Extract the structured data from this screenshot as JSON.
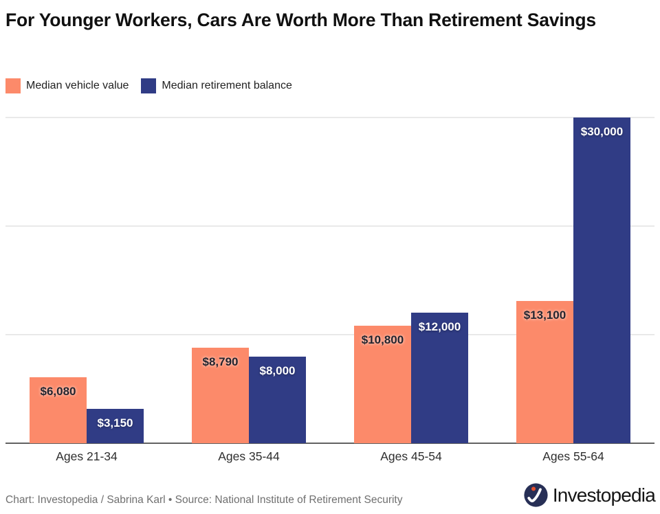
{
  "header": {
    "title": "For Younger Workers, Cars Are Worth More Than Retirement Savings"
  },
  "footer": {
    "credit": "Chart: Investopedia / Sabrina Karl • Source: National Institute of Retirement Security",
    "brand": "Investopedia"
  },
  "colors": {
    "vehicle_bar": "#FC8A6A",
    "retirement_bar": "#303C85",
    "gridline": "#E9E9E9",
    "axis_line": "#616161",
    "title_text": "#101010",
    "credit_text": "#6F6F6F",
    "logo_circle": "#272F56",
    "logo_dot": "#E4502E",
    "background": "#FFFFFF"
  },
  "chart_data": {
    "type": "bar",
    "title": "For Younger Workers, Cars Are Worth More Than Retirement Savings",
    "categories": [
      "Ages 21-34",
      "Ages 35-44",
      "Ages 45-54",
      "Ages 55-64"
    ],
    "series": [
      {
        "name": "Median vehicle value",
        "color": "#FC8A6A",
        "values": [
          6080,
          8790,
          10800,
          13100
        ],
        "labels": [
          "$6,080",
          "$8,790",
          "$10,800",
          "$13,100"
        ],
        "label_color": "#23242E"
      },
      {
        "name": "Median retirement balance",
        "color": "#303C85",
        "values": [
          3150,
          8000,
          12000,
          30000
        ],
        "labels": [
          "$3,150",
          "$8,000",
          "$12,000",
          "$30,000"
        ],
        "label_color": "#FFFFFF"
      }
    ],
    "xlabel": "",
    "ylabel": "",
    "ylim": [
      0,
      30000
    ],
    "gridlines": [
      10000,
      20000,
      30000
    ],
    "grid": "horizontal only",
    "y_tick_labels": "none (values shown as labels on bars)",
    "legend_position": "top-left"
  }
}
